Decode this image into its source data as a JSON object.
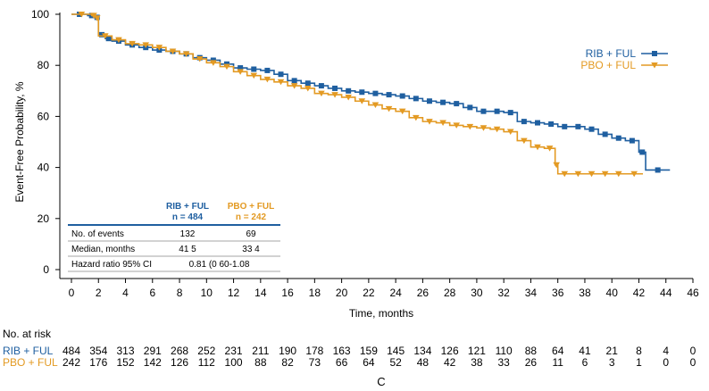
{
  "chart_data": {
    "type": "line",
    "title": "",
    "panel_label": "C",
    "xlabel": "Time, months",
    "ylabel": "Event-Free Probability, %",
    "xlim": [
      0,
      46
    ],
    "ylim": [
      0,
      100
    ],
    "x_ticks": [
      "0",
      "2",
      "4",
      "6",
      "8",
      "10",
      "12",
      "14",
      "16",
      "18",
      "20",
      "22",
      "24",
      "26",
      "28",
      "30",
      "32",
      "34",
      "36",
      "38",
      "40",
      "42",
      "44",
      "46"
    ],
    "y_ticks": [
      "0",
      "20",
      "40",
      "60",
      "80",
      "100"
    ],
    "legend_position": "top-right",
    "series": [
      {
        "name": "RIB + FUL",
        "color": "#1f5fa0",
        "marker": "square",
        "x": [
          0,
          1.2,
          1.8,
          2,
          2.5,
          3,
          4,
          5,
          6,
          7,
          8,
          9,
          10,
          11,
          12,
          13,
          14,
          15,
          16,
          17,
          18,
          19,
          20,
          21,
          22,
          23,
          24,
          25,
          26,
          27,
          28,
          29,
          30,
          31,
          32,
          33,
          34,
          35,
          36,
          37,
          38,
          39,
          40,
          41,
          42,
          42.5,
          44.3
        ],
        "y": [
          100,
          99.5,
          98.8,
          92,
          90.5,
          89.5,
          88,
          87,
          86,
          85.5,
          84.5,
          83,
          82,
          80.5,
          79,
          78.5,
          78,
          76.5,
          74,
          73,
          72,
          71,
          70,
          69.5,
          69,
          68.5,
          68,
          67,
          66,
          65.5,
          65,
          63.5,
          62,
          62,
          61.5,
          58,
          57.5,
          57,
          56,
          56,
          55,
          53,
          51.5,
          50.5,
          46,
          39,
          39
        ]
      },
      {
        "name": "PBO + FUL",
        "color": "#e39a23",
        "marker": "triangle-down",
        "x": [
          0,
          1.5,
          1.8,
          2,
          3,
          4,
          5,
          6,
          7,
          8,
          9,
          10,
          11,
          12,
          13,
          14,
          15,
          16,
          17,
          18,
          19,
          20,
          21,
          22,
          23,
          24,
          25,
          26,
          27,
          28,
          29,
          30,
          31,
          32,
          33,
          34,
          35,
          35.8,
          36,
          37,
          38,
          39,
          40,
          41,
          42.3
        ],
        "y": [
          100,
          99.5,
          98.5,
          91.5,
          90,
          88.5,
          88,
          87,
          85.5,
          84.5,
          82.5,
          81,
          79.5,
          77.5,
          76,
          74.5,
          73.5,
          72,
          71,
          69,
          68.5,
          67.5,
          66,
          64.5,
          63,
          62,
          59.5,
          58,
          57.5,
          56.5,
          56,
          55.5,
          55,
          54,
          50.5,
          48,
          47.5,
          41,
          37.5,
          37.5,
          37.5,
          37.5,
          37.5,
          37.5,
          37.5
        ]
      }
    ],
    "summary_table": {
      "col_headers": [
        {
          "l1": "RIB + FUL",
          "l2": "n = 484"
        },
        {
          "l1": "PBO + FUL",
          "l2": "n = 242"
        }
      ],
      "rows": [
        {
          "label": "No. of events",
          "rib": "132",
          "pbo": "69"
        },
        {
          "label": "Median, months",
          "rib": "41 5",
          "pbo": "33 4"
        },
        {
          "label": "Hazard ratio  95% CI",
          "combined": "0.81 (0 60-1.08"
        }
      ]
    },
    "risk_table": {
      "title": "No. at risk",
      "x": [
        0,
        2,
        4,
        6,
        8,
        10,
        12,
        14,
        16,
        18,
        20,
        22,
        24,
        26,
        28,
        30,
        32,
        34,
        36,
        38,
        40,
        42,
        44,
        46
      ],
      "rows": [
        {
          "name": "RIB + FUL",
          "color": "#1f5fa0",
          "values": [
            "484",
            "354",
            "313",
            "291",
            "268",
            "252",
            "231",
            "211",
            "190",
            "178",
            "163",
            "159",
            "145",
            "134",
            "126",
            "121",
            "110",
            "88",
            "64",
            "41",
            "21",
            "8",
            "4",
            "0"
          ]
        },
        {
          "name": "PBO + FUL",
          "color": "#e39a23",
          "values": [
            "242",
            "176",
            "152",
            "142",
            "126",
            "112",
            "100",
            "88",
            "82",
            "73",
            "66",
            "64",
            "52",
            "48",
            "42",
            "38",
            "33",
            "26",
            "11",
            "6",
            "3",
            "1",
            "0",
            "0"
          ]
        }
      ]
    }
  }
}
